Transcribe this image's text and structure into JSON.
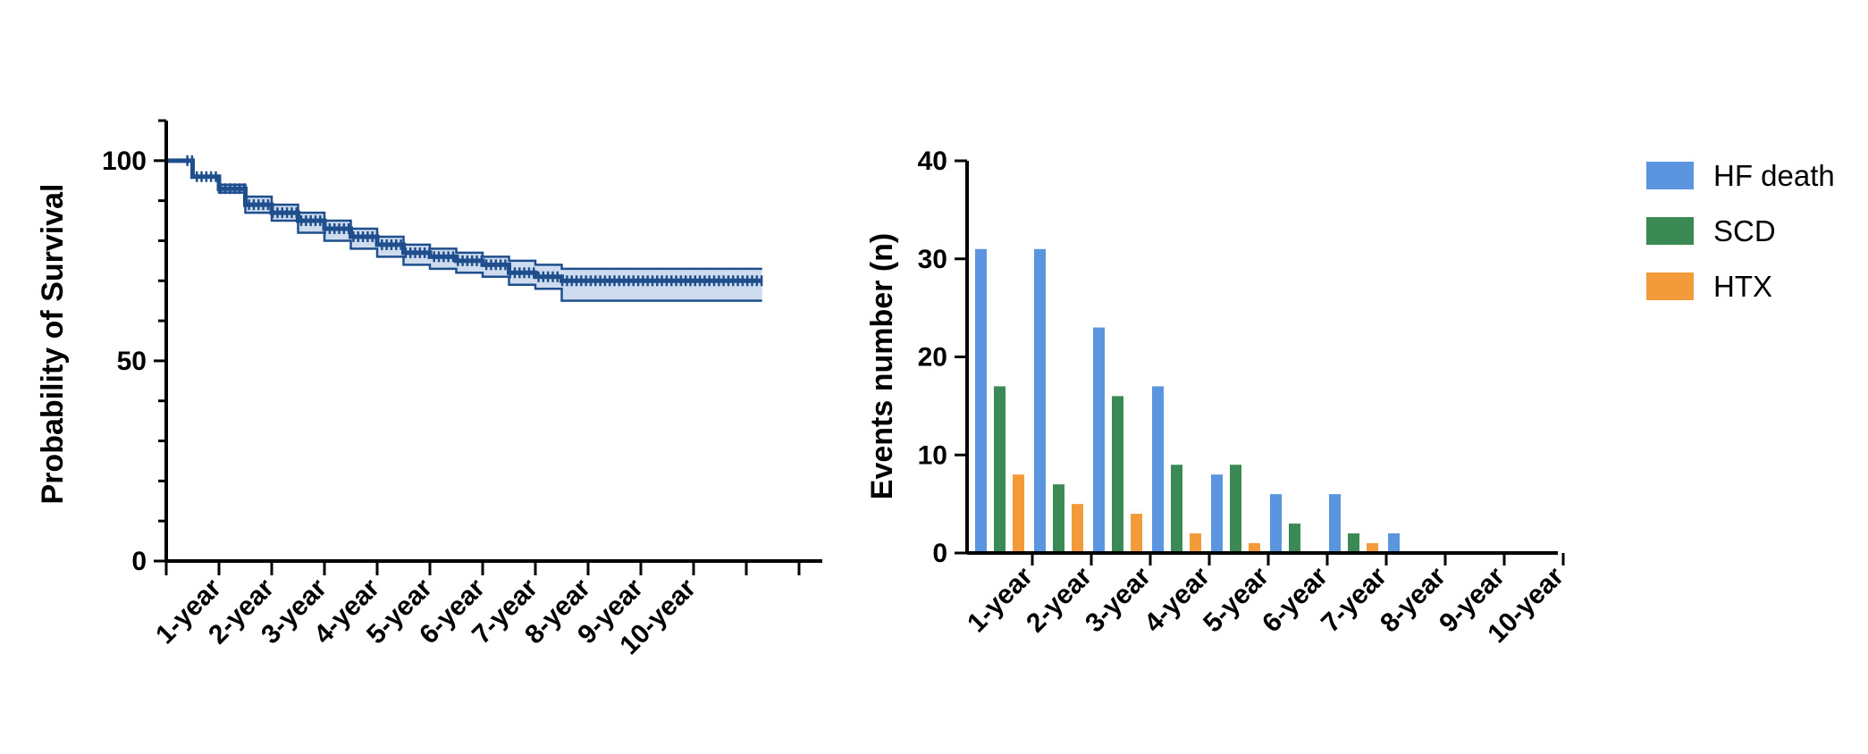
{
  "chart_data": [
    {
      "type": "line",
      "subtype": "kaplan-meier",
      "ylabel": "Probability of Survival",
      "ylim": [
        0,
        110
      ],
      "yticks": [
        "0",
        "50",
        "100"
      ],
      "x_tick_labels": [
        "1-year",
        "2-year",
        "3-year",
        "4-year",
        "5-year",
        "6-year",
        "7-year",
        "8-year",
        "9-year",
        "10-year"
      ],
      "x": [
        0,
        0.5,
        1,
        1.5,
        2,
        2.5,
        3,
        3.5,
        4,
        4.5,
        5,
        5.5,
        6,
        6.5,
        7,
        7.5,
        8,
        9,
        10,
        11,
        11.3
      ],
      "survival": [
        100,
        96,
        93,
        89,
        87,
        85,
        83,
        81,
        79,
        77,
        76,
        75,
        74,
        72,
        71,
        70,
        70,
        70,
        70,
        70,
        70
      ],
      "ci_upper": [
        100,
        96,
        94,
        91,
        89,
        87,
        85,
        83,
        81,
        79,
        78,
        77,
        76,
        75,
        74,
        73,
        73,
        73,
        73,
        73,
        73
      ],
      "ci_lower": [
        100,
        96,
        92,
        87,
        85,
        82,
        80,
        78,
        76,
        74,
        73,
        72,
        71,
        69,
        68,
        65,
        65,
        65,
        65,
        65,
        65
      ],
      "color": "#1f4e8c",
      "ci_color": "#cfdcf0",
      "grid": false
    },
    {
      "type": "bar",
      "categories": [
        "1-year",
        "2-year",
        "3-year",
        "4-year",
        "5-year",
        "6-year",
        "7-year",
        "8-year",
        "9-year",
        "10-year"
      ],
      "series": [
        {
          "name": "HF death",
          "color": "#5b95e0",
          "values": [
            31,
            31,
            23,
            17,
            8,
            6,
            6,
            2,
            0,
            0
          ]
        },
        {
          "name": "SCD",
          "color": "#3b8a55",
          "values": [
            17,
            7,
            16,
            9,
            9,
            3,
            2,
            0,
            0,
            0
          ]
        },
        {
          "name": "HTX",
          "color": "#f39b3a",
          "values": [
            8,
            5,
            4,
            2,
            1,
            0,
            1,
            0,
            0,
            0
          ]
        }
      ],
      "ylabel": "Events number (n)",
      "ylim": [
        0,
        40
      ],
      "yticks": [
        "0",
        "10",
        "20",
        "30",
        "40"
      ],
      "legend_position": "right",
      "grid": false
    }
  ]
}
